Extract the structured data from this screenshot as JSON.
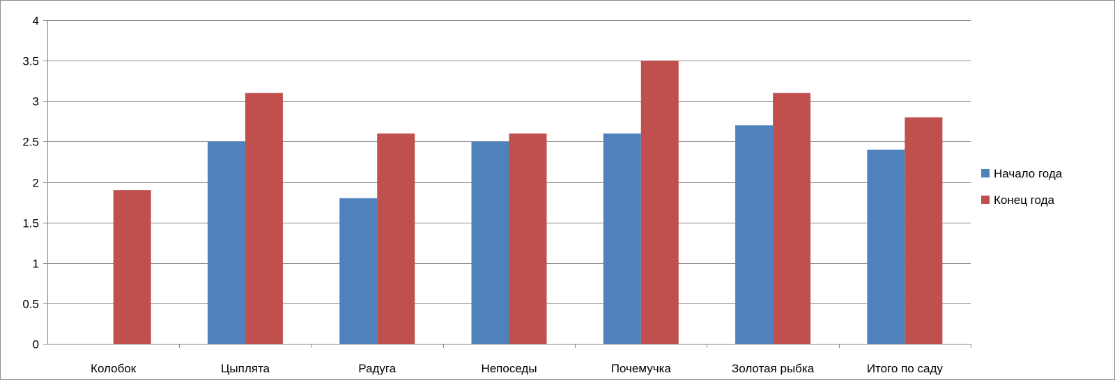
{
  "chart_data": {
    "type": "bar",
    "title": "",
    "xlabel": "",
    "ylabel": "",
    "categories": [
      "Колобок",
      "Цыплята",
      "Радуга",
      "Непоседы",
      "Почемучка",
      "Золотая рыбка",
      "Итого по саду"
    ],
    "series": [
      {
        "name": "Начало года",
        "color": "#4f81bd",
        "values": [
          null,
          2.5,
          1.8,
          2.5,
          2.6,
          2.7,
          2.4
        ]
      },
      {
        "name": "Конец года",
        "color": "#c0504d",
        "values": [
          1.9,
          3.1,
          2.6,
          2.6,
          3.5,
          3.1,
          2.8
        ]
      }
    ],
    "ylim": [
      0,
      4
    ],
    "yticks": [
      "0",
      "0.5",
      "1",
      "1.5",
      "2",
      "2.5",
      "3",
      "3.5",
      "4"
    ],
    "grid": true,
    "legend_position": "right"
  }
}
